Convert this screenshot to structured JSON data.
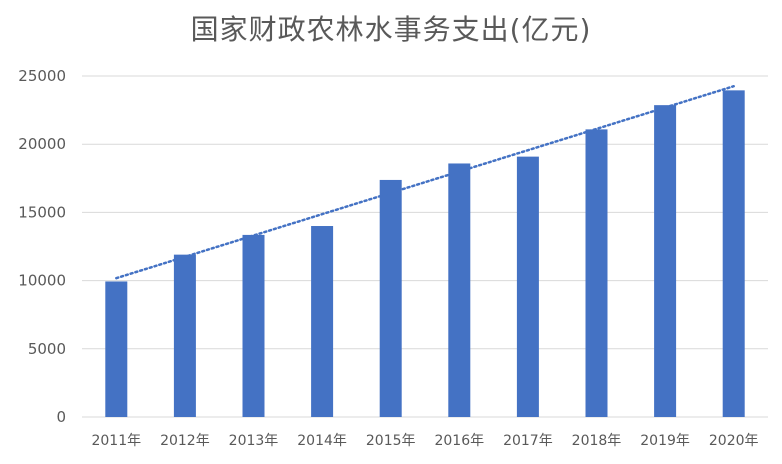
{
  "chart_data": {
    "type": "bar",
    "title": "国家财政农林水事务支出(亿元)",
    "xlabel": "",
    "ylabel": "",
    "categories": [
      "2011年",
      "2012年",
      "2013年",
      "2014年",
      "2015年",
      "2016年",
      "2017年",
      "2018年",
      "2019年",
      "2020年"
    ],
    "series": [
      {
        "values": [
          9937,
          11903,
          13350,
          14002,
          17380,
          18587,
          19089,
          21086,
          22863,
          23948
        ]
      }
    ],
    "ylim": [
      0,
      25000
    ],
    "yticks": [
      0,
      5000,
      10000,
      15000,
      20000,
      25000
    ],
    "grid": true,
    "legend": "none",
    "trendline": {
      "type": "linear",
      "style": "dotted"
    },
    "colors": {
      "bar": "#4472c4",
      "trendline": "#4472c4",
      "grid": "#d9d9d9",
      "axis_text": "#595959",
      "title": "#595959"
    }
  }
}
